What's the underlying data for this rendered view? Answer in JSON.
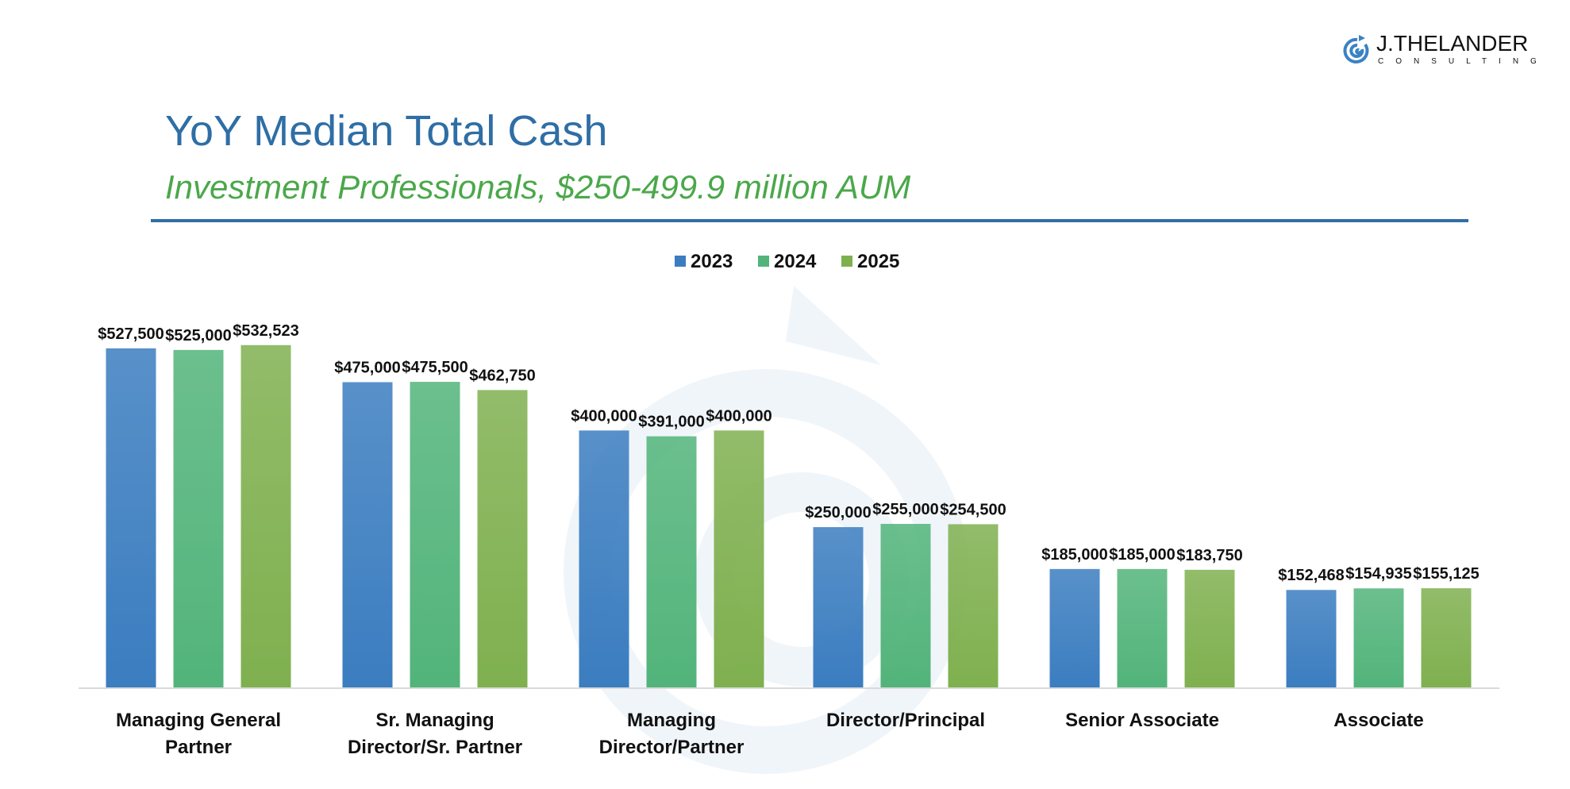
{
  "logo": {
    "name": "J.THELANDER",
    "tagline": "CONSULTING"
  },
  "header": {
    "title": "YoY Median Total Cash",
    "subtitle": "Investment Professionals, $250-499.9 million AUM"
  },
  "chart_data": {
    "type": "bar",
    "title": "YoY Median Total Cash",
    "subtitle": "Investment Professionals, $250-499.9 million AUM",
    "categories": [
      [
        "Managing General",
        "Partner"
      ],
      [
        "Sr. Managing",
        "Director/Sr. Partner"
      ],
      [
        "Managing",
        "Director/Partner"
      ],
      [
        "Director/Principal"
      ],
      [
        "Senior Associate"
      ],
      [
        "Associate"
      ]
    ],
    "series": [
      {
        "name": "2023",
        "color": "#3b7dc0",
        "values": [
          527500,
          475000,
          400000,
          250000,
          185000,
          152468
        ],
        "labels": [
          "$527,500",
          "$475,000",
          "$400,000",
          "$250,000",
          "$185,000",
          "$152,468"
        ]
      },
      {
        "name": "2024",
        "color": "#52b47a",
        "values": [
          525000,
          475500,
          391000,
          255000,
          185000,
          154935
        ],
        "labels": [
          "$525,000",
          "$475,500",
          "$391,000",
          "$255,000",
          "$185,000",
          "$154,935"
        ]
      },
      {
        "name": "2025",
        "color": "#7fb04f",
        "values": [
          532523,
          462750,
          400000,
          254500,
          183750,
          155125
        ],
        "labels": [
          "$532,523",
          "$462,750",
          "$400,000",
          "$254,500",
          "$183,750",
          "$155,125"
        ]
      }
    ],
    "xlabel": "",
    "ylabel": "",
    "ylim": [
      0,
      600000
    ],
    "grid": false,
    "legend": "top-center"
  }
}
